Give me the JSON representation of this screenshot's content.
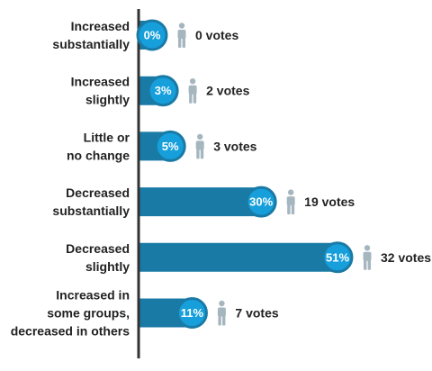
{
  "chart_data": {
    "type": "bar",
    "orientation": "horizontal",
    "categories": [
      [
        "Increased",
        "substantially"
      ],
      [
        "Increased",
        "slightly"
      ],
      [
        "Little or",
        "no change"
      ],
      [
        "Decreased",
        "substantially"
      ],
      [
        "Decreased",
        "slightly"
      ],
      [
        "Increased in",
        "some groups,",
        "decreased in others"
      ]
    ],
    "values": [
      0,
      3,
      5,
      30,
      51,
      11
    ],
    "value_labels": [
      "0%",
      "3%",
      "5%",
      "30%",
      "51%",
      "11%"
    ],
    "votes": [
      0,
      2,
      3,
      19,
      32,
      7
    ],
    "vote_labels": [
      "0 votes",
      "2 votes",
      "3 votes",
      "19 votes",
      "32 votes",
      "7 votes"
    ],
    "xlim": [
      0,
      51
    ],
    "grid": false,
    "legend": "none",
    "colors": {
      "bar": "#1a7aa6",
      "bubble": "#169fdb",
      "bubble_ring": "#1a7aa6",
      "person_icon": "#a6b6bf",
      "axis": "#333333",
      "text": "#222222"
    },
    "icon": "person-icon"
  }
}
